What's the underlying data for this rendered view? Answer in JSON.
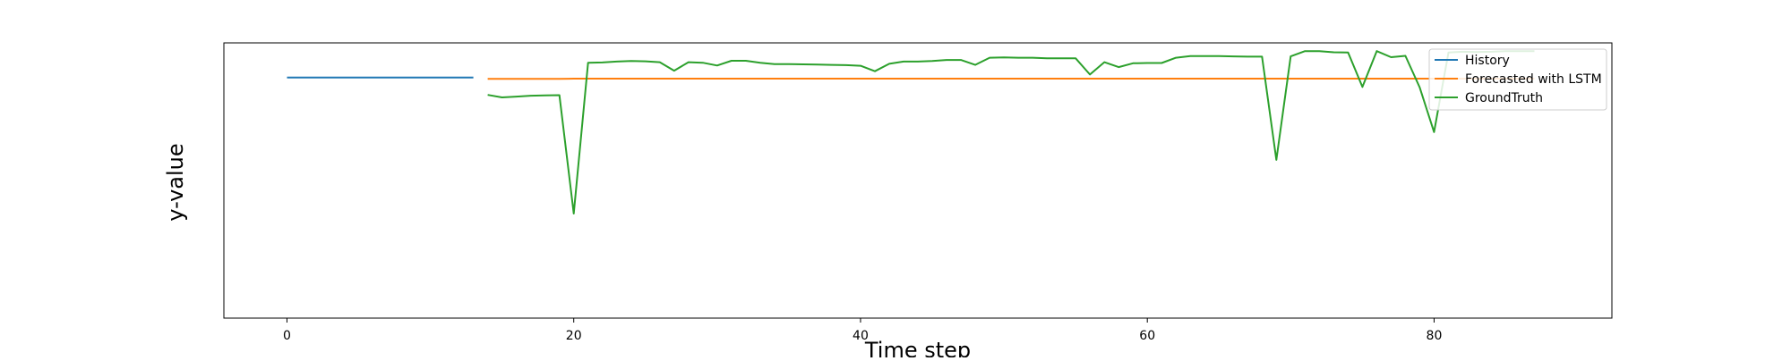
{
  "chart_data": {
    "type": "line",
    "title": "",
    "xlabel": "Time step",
    "ylabel": "y-value",
    "xlim": [
      -4.4,
      92.4
    ],
    "ylim": [
      0,
      1
    ],
    "x_ticks": [
      0,
      20,
      40,
      60,
      80
    ],
    "grid": false,
    "legend_position": "top-right",
    "colors": {
      "history": "#1f77b4",
      "forecast": "#ff7f0e",
      "ground_truth": "#2ca02c"
    },
    "series": [
      {
        "name": "History",
        "x": [
          0,
          1,
          2,
          3,
          4,
          5,
          6,
          7,
          8,
          9,
          10,
          11,
          12,
          13
        ],
        "y": [
          0.874,
          0.874,
          0.874,
          0.874,
          0.874,
          0.874,
          0.874,
          0.874,
          0.874,
          0.874,
          0.874,
          0.874,
          0.874,
          0.874
        ]
      },
      {
        "name": "Forecasted with LSTM",
        "x": [
          14,
          15,
          16,
          17,
          18,
          19,
          20,
          21,
          22,
          23,
          24,
          25,
          26,
          27,
          28,
          29,
          30,
          31,
          32,
          33,
          34,
          35,
          36,
          37,
          38,
          39,
          40,
          41,
          42,
          43,
          44,
          45,
          46,
          47,
          48,
          49,
          50,
          51,
          52,
          53,
          54,
          55,
          56,
          57,
          58,
          59,
          60,
          61,
          62,
          63,
          64,
          65,
          66,
          67,
          68,
          69,
          70,
          71,
          72,
          73,
          74,
          75,
          76,
          77,
          78,
          79,
          80,
          81,
          82,
          83,
          84,
          85,
          86,
          87
        ],
        "y": [
          0.869,
          0.869,
          0.869,
          0.869,
          0.869,
          0.869,
          0.87,
          0.87,
          0.87,
          0.87,
          0.87,
          0.87,
          0.87,
          0.87,
          0.87,
          0.87,
          0.87,
          0.87,
          0.87,
          0.87,
          0.87,
          0.87,
          0.87,
          0.87,
          0.87,
          0.87,
          0.87,
          0.87,
          0.87,
          0.87,
          0.87,
          0.87,
          0.87,
          0.87,
          0.87,
          0.87,
          0.87,
          0.87,
          0.87,
          0.87,
          0.87,
          0.87,
          0.87,
          0.87,
          0.87,
          0.87,
          0.87,
          0.87,
          0.87,
          0.87,
          0.87,
          0.87,
          0.87,
          0.87,
          0.87,
          0.87,
          0.87,
          0.87,
          0.87,
          0.87,
          0.87,
          0.87,
          0.87,
          0.87,
          0.87,
          0.87,
          0.87,
          0.87,
          0.87,
          0.87,
          0.87,
          0.87,
          0.87,
          0.87
        ]
      },
      {
        "name": "GroundTruth",
        "x": [
          14,
          15,
          16,
          17,
          18,
          19,
          20,
          21,
          22,
          23,
          24,
          25,
          26,
          27,
          28,
          29,
          30,
          31,
          32,
          33,
          34,
          35,
          36,
          37,
          38,
          39,
          40,
          41,
          42,
          43,
          44,
          45,
          46,
          47,
          48,
          49,
          50,
          51,
          52,
          53,
          54,
          55,
          56,
          57,
          58,
          59,
          60,
          61,
          62,
          63,
          64,
          65,
          66,
          67,
          68,
          69,
          70,
          71,
          72,
          73,
          74,
          75,
          76,
          77,
          78,
          79,
          80,
          81,
          82,
          83,
          84,
          85,
          86,
          87
        ],
        "y": [
          0.811,
          0.802,
          0.805,
          0.808,
          0.809,
          0.81,
          0.38,
          0.928,
          0.929,
          0.932,
          0.934,
          0.933,
          0.93,
          0.899,
          0.93,
          0.928,
          0.918,
          0.935,
          0.935,
          0.928,
          0.923,
          0.923,
          0.922,
          0.921,
          0.92,
          0.919,
          0.917,
          0.897,
          0.924,
          0.932,
          0.932,
          0.934,
          0.938,
          0.938,
          0.92,
          0.946,
          0.947,
          0.946,
          0.946,
          0.944,
          0.944,
          0.944,
          0.885,
          0.93,
          0.912,
          0.926,
          0.927,
          0.927,
          0.946,
          0.952,
          0.952,
          0.952,
          0.951,
          0.95,
          0.95,
          0.575,
          0.951,
          0.97,
          0.97,
          0.966,
          0.965,
          0.84,
          0.97,
          0.948,
          0.953,
          0.838,
          0.676,
          0.965,
          0.968,
          0.967,
          0.968,
          0.97,
          0.97,
          0.97
        ]
      }
    ]
  }
}
